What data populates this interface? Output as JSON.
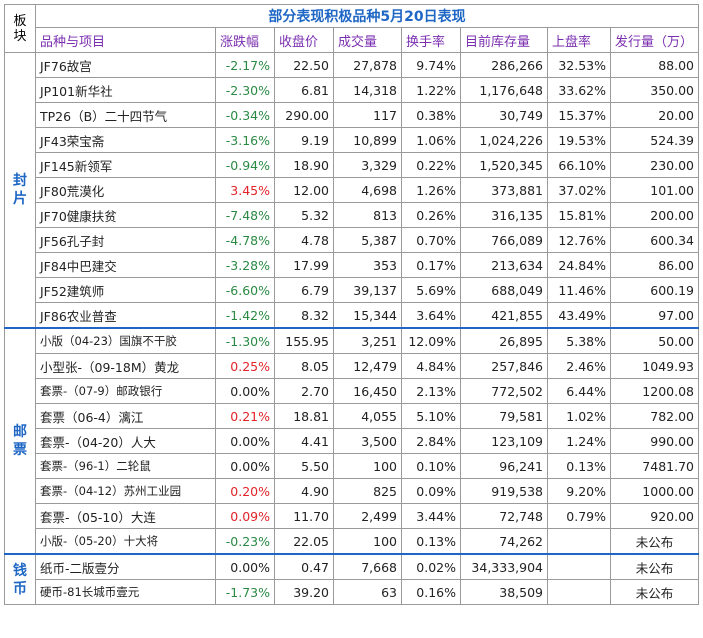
{
  "table_title": "部分表现积极品种5月20日表现",
  "block_header": "板块",
  "headers": [
    "品种与项目",
    "涨跌幅",
    "收盘价",
    "成交量",
    "换手率",
    "目前库存量",
    "上盘率",
    "发行量（万）"
  ],
  "sections": [
    {
      "name": "封片",
      "rows": [
        {
          "name": "JF76故宫",
          "change": "-2.17%",
          "dir": "neg",
          "close": "22.50",
          "volume": "27,878",
          "turnover": "9.74%",
          "stock": "286,266",
          "listed": "32.53%",
          "issue": "88.00"
        },
        {
          "name": "JP101新华社",
          "change": "-2.30%",
          "dir": "neg",
          "close": "6.81",
          "volume": "14,318",
          "turnover": "1.22%",
          "stock": "1,176,648",
          "listed": "33.62%",
          "issue": "350.00"
        },
        {
          "name": "TP26（B）二十四节气",
          "change": "-0.34%",
          "dir": "neg",
          "close": "290.00",
          "volume": "117",
          "turnover": "0.38%",
          "stock": "30,749",
          "listed": "15.37%",
          "issue": "20.00"
        },
        {
          "name": "JF43荣宝斋",
          "change": "-3.16%",
          "dir": "neg",
          "close": "9.19",
          "volume": "10,899",
          "turnover": "1.06%",
          "stock": "1,024,226",
          "listed": "19.53%",
          "issue": "524.39"
        },
        {
          "name": "JF145新领军",
          "change": "-0.94%",
          "dir": "neg",
          "close": "18.90",
          "volume": "3,329",
          "turnover": "0.22%",
          "stock": "1,520,345",
          "listed": "66.10%",
          "issue": "230.00"
        },
        {
          "name": "JF80荒漠化",
          "change": "3.45%",
          "dir": "pos",
          "close": "12.00",
          "volume": "4,698",
          "turnover": "1.26%",
          "stock": "373,881",
          "listed": "37.02%",
          "issue": "101.00"
        },
        {
          "name": "JF70健康扶贫",
          "change": "-7.48%",
          "dir": "neg",
          "close": "5.32",
          "volume": "813",
          "turnover": "0.26%",
          "stock": "316,135",
          "listed": "15.81%",
          "issue": "200.00"
        },
        {
          "name": "JF56孔子封",
          "change": "-4.78%",
          "dir": "neg",
          "close": "4.78",
          "volume": "5,387",
          "turnover": "0.70%",
          "stock": "766,089",
          "listed": "12.76%",
          "issue": "600.34"
        },
        {
          "name": "JF84中巴建交",
          "change": "-3.28%",
          "dir": "neg",
          "close": "17.99",
          "volume": "353",
          "turnover": "0.17%",
          "stock": "213,634",
          "listed": "24.84%",
          "issue": "86.00"
        },
        {
          "name": "JF52建筑师",
          "change": "-6.60%",
          "dir": "neg",
          "close": "6.79",
          "volume": "39,137",
          "turnover": "5.69%",
          "stock": "688,049",
          "listed": "11.46%",
          "issue": "600.19"
        },
        {
          "name": "JF86农业普查",
          "change": "-1.42%",
          "dir": "neg",
          "close": "8.32",
          "volume": "15,344",
          "turnover": "3.64%",
          "stock": "421,855",
          "listed": "43.49%",
          "issue": "97.00"
        }
      ]
    },
    {
      "name": "邮票",
      "rows": [
        {
          "name": "小版（04-23）国旗不干胶",
          "change": "-1.30%",
          "dir": "neg",
          "close": "155.95",
          "volume": "3,251",
          "turnover": "12.09%",
          "stock": "26,895",
          "listed": "5.38%",
          "issue": "50.00",
          "small": true
        },
        {
          "name": "小型张-（09-18M）黄龙",
          "change": "0.25%",
          "dir": "pos",
          "close": "8.05",
          "volume": "12,479",
          "turnover": "4.84%",
          "stock": "257,846",
          "listed": "2.46%",
          "issue": "1049.93"
        },
        {
          "name": "套票-（07-9）邮政银行",
          "change": "0.00%",
          "dir": "zero",
          "close": "2.70",
          "volume": "16,450",
          "turnover": "2.13%",
          "stock": "772,502",
          "listed": "6.44%",
          "issue": "1200.08",
          "small": true
        },
        {
          "name": "套票（06-4）漓江",
          "change": "0.21%",
          "dir": "pos",
          "close": "18.81",
          "volume": "4,055",
          "turnover": "5.10%",
          "stock": "79,581",
          "listed": "1.02%",
          "issue": "782.00"
        },
        {
          "name": "套票-（04-20）人大",
          "change": "0.00%",
          "dir": "zero",
          "close": "4.41",
          "volume": "3,500",
          "turnover": "2.84%",
          "stock": "123,109",
          "listed": "1.24%",
          "issue": "990.00"
        },
        {
          "name": "套票-（96-1）二轮鼠",
          "change": "0.00%",
          "dir": "zero",
          "close": "5.50",
          "volume": "100",
          "turnover": "0.10%",
          "stock": "96,241",
          "listed": "0.13%",
          "issue": "7481.70",
          "small": true
        },
        {
          "name": "套票-（04-12）苏州工业园",
          "change": "0.20%",
          "dir": "pos",
          "close": "4.90",
          "volume": "825",
          "turnover": "0.09%",
          "stock": "919,538",
          "listed": "9.20%",
          "issue": "1000.00",
          "small": true
        },
        {
          "name": "套票-（05-10）大连",
          "change": "0.09%",
          "dir": "pos",
          "close": "11.70",
          "volume": "2,499",
          "turnover": "3.44%",
          "stock": "72,748",
          "listed": "0.79%",
          "issue": "920.00"
        },
        {
          "name": "小版-（05-20）十大将",
          "change": "-0.23%",
          "dir": "neg",
          "close": "22.05",
          "volume": "100",
          "turnover": "0.13%",
          "stock": "74,262",
          "listed": "",
          "issue": "未公布",
          "small": true
        }
      ]
    },
    {
      "name": "钱币",
      "rows": [
        {
          "name": "纸币-二版壹分",
          "change": "0.00%",
          "dir": "zero",
          "close": "0.47",
          "volume": "7,668",
          "turnover": "0.02%",
          "stock": "34,333,904",
          "listed": "",
          "issue": "未公布"
        },
        {
          "name": "硬币-81长城币壹元",
          "change": "-1.73%",
          "dir": "neg",
          "close": "39.20",
          "volume": "63",
          "turnover": "0.16%",
          "stock": "38,509",
          "listed": "",
          "issue": "未公布",
          "small": true
        }
      ]
    }
  ],
  "colors": {
    "title": "#1f67c5",
    "header": "#7b2fb0",
    "negative": "#2a8a44",
    "positive": "#e0242a"
  }
}
